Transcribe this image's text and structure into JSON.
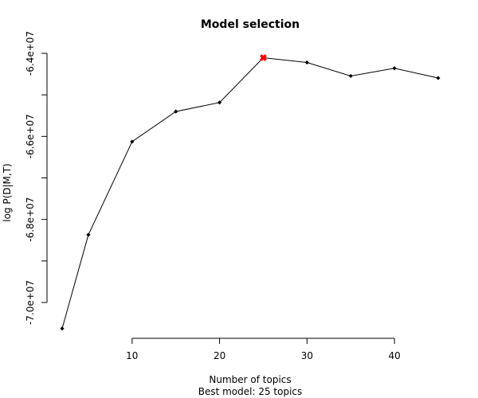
{
  "chart_data": {
    "type": "line",
    "title": "Model selection",
    "xlabel": "Number of topics",
    "subtitle": "Best model: 25 topics",
    "ylabel": "log P(D|M,T)",
    "x": [
      2,
      5,
      10,
      15,
      20,
      25,
      30,
      35,
      40,
      45
    ],
    "y": [
      -70627000,
      -68370000,
      -66127000,
      -65402000,
      -65185000,
      -64105000,
      -64220000,
      -64545000,
      -64360000,
      -64595000
    ],
    "best": {
      "x": 25,
      "y": -64105000
    },
    "xticks": [
      10,
      20,
      30,
      40
    ],
    "xtick_labels": [
      "10",
      "20",
      "30",
      "40"
    ],
    "yticks": [
      -64000000,
      -66000000,
      -68000000,
      -70000000
    ],
    "ytick_labels": [
      "-6.4e+07",
      "-6.6e+07",
      "-6.8e+07",
      "-7.0e+07"
    ],
    "yminor_ticks": [
      -65000000,
      -67000000,
      -69000000
    ],
    "ylim": [
      -70800000,
      -63750000
    ],
    "xlim": [
      0,
      47
    ],
    "grid": false,
    "colors": {
      "line": "#000000",
      "point": "#000000",
      "best": "#ff0000"
    }
  }
}
